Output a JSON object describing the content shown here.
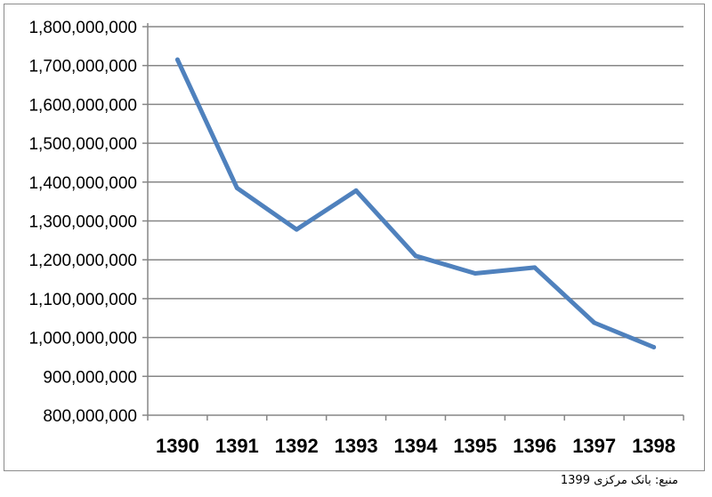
{
  "chart_data": {
    "type": "line",
    "title": "",
    "xlabel": "",
    "ylabel": "",
    "categories": [
      "1390",
      "1391",
      "1392",
      "1393",
      "1394",
      "1395",
      "1396",
      "1397",
      "1398"
    ],
    "series": [
      {
        "values": [
          1715000000,
          1385000000,
          1278000000,
          1378000000,
          1210000000,
          1165000000,
          1180000000,
          1038000000,
          975000000
        ]
      }
    ],
    "ylim": [
      800000000,
      1800000000
    ],
    "y_ticks": [
      "800,000,000",
      "900,000,000",
      "1,000,000,000",
      "1,100,000,000",
      "1,200,000,000",
      "1,300,000,000",
      "1,400,000,000",
      "1,500,000,000",
      "1,600,000,000",
      "1,700,000,000",
      "1,800,000,000"
    ],
    "grid": true,
    "legend": "none",
    "line_color": "#4f81bd",
    "grid_color": "#868686"
  },
  "source_caption": "منبع: بانک مرکزی 1399"
}
